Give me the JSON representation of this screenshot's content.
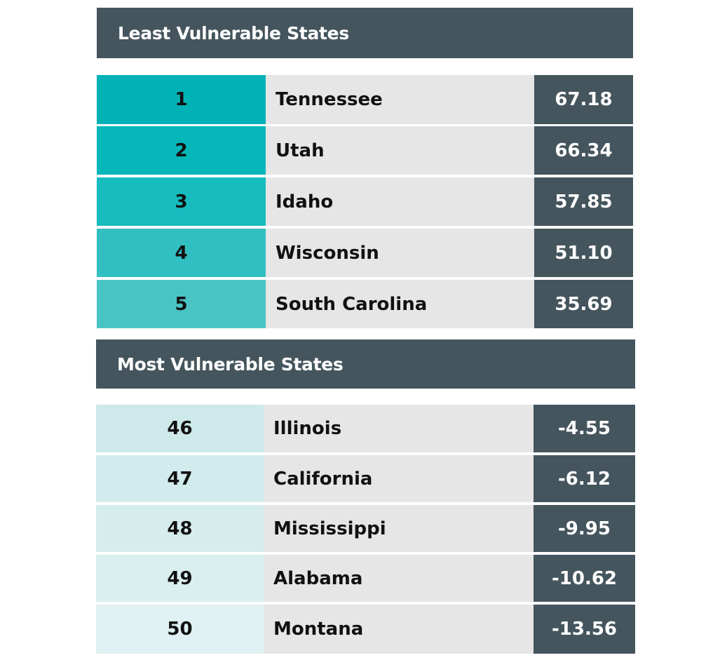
{
  "least_vulnerable": {
    "title": "Least Vulnerable States",
    "rows": [
      {
        "rank": "1",
        "state": "Tennessee",
        "score": "67.18",
        "rank_color": "#00b2b6"
      },
      {
        "rank": "2",
        "state": "Utah",
        "score": "66.34",
        "rank_color": "#06b7ba"
      },
      {
        "rank": "3",
        "state": "Idaho",
        "score": "57.85",
        "rank_color": "#17bcbe"
      },
      {
        "rank": "4",
        "state": "Wisconsin",
        "score": "51.10",
        "rank_color": "#32bfc1"
      },
      {
        "rank": "5",
        "state": "South Carolina",
        "score": "35.69",
        "rank_color": "#4ac3c5"
      }
    ]
  },
  "most_vulnerable": {
    "title": "Most Vulnerable States",
    "rows": [
      {
        "rank": "46",
        "state": "Illinois",
        "score": "-4.55",
        "rank_color": "#cde9ea"
      },
      {
        "rank": "47",
        "state": "California",
        "score": "-6.12",
        "rank_color": "#d2ebec"
      },
      {
        "rank": "48",
        "state": "Mississippi",
        "score": "-9.95",
        "rank_color": "#d6edee"
      },
      {
        "rank": "49",
        "state": "Alabama",
        "score": "-10.62",
        "rank_color": "#daeff0"
      },
      {
        "rank": "50",
        "state": "Montana",
        "score": "-13.56",
        "rank_color": "#dff1f2"
      }
    ]
  },
  "colors": {
    "header_bg": "#45555e",
    "state_bg": "#e6e6e6",
    "score_bg": "#45555e"
  }
}
